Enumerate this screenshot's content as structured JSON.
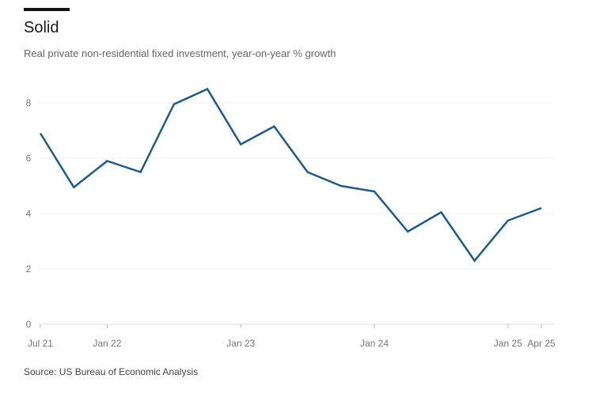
{
  "chart_data": {
    "type": "line",
    "title": "Solid",
    "subtitle": "Real private non-residential fixed investment, year-on-year % growth",
    "source": "Source: US Bureau of Economic Analysis",
    "xlabel": "",
    "ylabel": "",
    "ylim": [
      0,
      8.6
    ],
    "yticks": [
      0,
      2,
      4,
      6,
      8
    ],
    "grid": true,
    "x_quarters": [
      "2021Q3",
      "2021Q4",
      "2022Q1",
      "2022Q2",
      "2022Q3",
      "2022Q4",
      "2023Q1",
      "2023Q2",
      "2023Q3",
      "2023Q4",
      "2024Q1",
      "2024Q2",
      "2024Q3",
      "2024Q4",
      "2025Q1",
      "2025Q2"
    ],
    "xticks": [
      {
        "index": 0,
        "label": "Jul 21"
      },
      {
        "index": 2,
        "label": "Jan 22"
      },
      {
        "index": 6,
        "label": "Jan 23"
      },
      {
        "index": 10,
        "label": "Jan 24"
      },
      {
        "index": 14,
        "label": "Jan 25"
      },
      {
        "index": 15,
        "label": "Apr 25"
      }
    ],
    "series": [
      {
        "name": "Real private non-residential fixed investment",
        "color": "#1f5a8e",
        "values": [
          6.9,
          4.95,
          5.9,
          5.5,
          7.95,
          8.5,
          6.5,
          7.15,
          5.5,
          5.0,
          4.8,
          3.35,
          4.05,
          2.3,
          3.75,
          4.2
        ]
      }
    ]
  }
}
